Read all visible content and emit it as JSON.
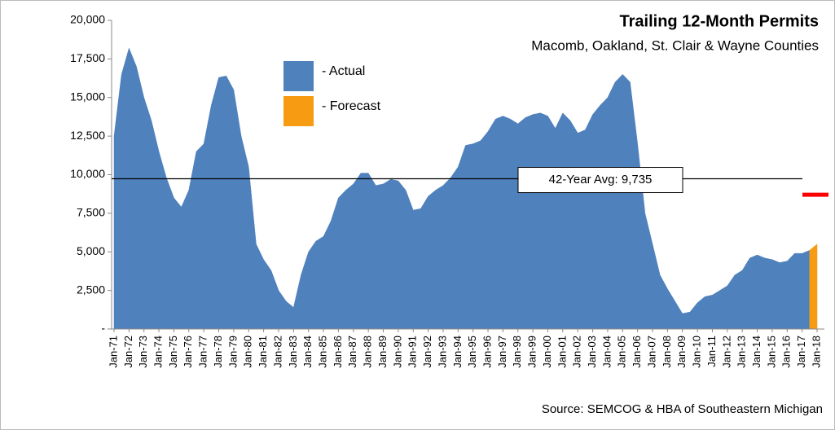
{
  "chart_data": {
    "type": "area",
    "title": "Trailing 12-Month Permits",
    "subtitle": "Macomb, Oakland, St. Clair & Wayne Counties",
    "source": "Source: SEMCOG & HBA of Southeastern Michigan",
    "categories": [
      "Jan-71",
      null,
      "Jan-72",
      null,
      "Jan-73",
      null,
      "Jan-74",
      null,
      "Jan-75",
      null,
      "Jan-76",
      null,
      "Jan-77",
      null,
      "Jan-78",
      null,
      "Jan-79",
      null,
      "Jan-80",
      null,
      "Jan-81",
      null,
      "Jan-82",
      null,
      "Jan-83",
      null,
      "Jan-84",
      null,
      "Jan-85",
      null,
      "Jan-86",
      null,
      "Jan-87",
      null,
      "Jan-88",
      null,
      "Jan-89",
      null,
      "Jan-90",
      null,
      "Jan-91",
      null,
      "Jan-92",
      null,
      "Jan-93",
      null,
      "Jan-94",
      null,
      "Jan-95",
      null,
      "Jan-96",
      null,
      "Jan-97",
      null,
      "Jan-98",
      null,
      "Jan-99",
      null,
      "Jan-00",
      null,
      "Jan-01",
      null,
      "Jan-02",
      null,
      "Jan-03",
      null,
      "Jan-04",
      null,
      "Jan-05",
      null,
      "Jan-06",
      null,
      "Jan-07",
      null,
      "Jan-08",
      null,
      "Jan-09",
      null,
      "Jan-10",
      null,
      "Jan-11",
      null,
      "Jan-12",
      null,
      "Jan-13",
      null,
      "Jan-14",
      null,
      "Jan-15",
      null,
      "Jan-16",
      null,
      "Jan-17",
      null,
      "Jan-18"
    ],
    "series": [
      {
        "name": "- Actual",
        "color": "#4f81bd",
        "values": [
          12500,
          16500,
          18200,
          17000,
          15000,
          13500,
          11500,
          9800,
          8500,
          7900,
          9000,
          11500,
          12000,
          14500,
          16300,
          16400,
          15500,
          12500,
          10500,
          5500,
          4500,
          3800,
          2500,
          1800,
          1400,
          3500,
          5000,
          5700,
          6000,
          7000,
          8500,
          9000,
          9400,
          10100,
          10100,
          9300,
          9400,
          9700,
          9600,
          9000,
          7700,
          7800,
          8600,
          9000,
          9300,
          9800,
          10500,
          11900,
          12000,
          12200,
          12800,
          13600,
          13800,
          13600,
          13300,
          13700,
          13900,
          14000,
          13800,
          13000,
          14000,
          13500,
          12700,
          12900,
          13900,
          14500,
          15000,
          16000,
          16500,
          16000,
          12000,
          7500,
          5500,
          3500,
          2600,
          1800,
          1000,
          1100,
          1700,
          2100,
          2200,
          2500,
          2800,
          3500,
          3800,
          4600,
          4800,
          4600,
          4500,
          4300,
          4400,
          4900,
          4900,
          5100,
          null
        ]
      },
      {
        "name": "- Forecast",
        "color": "#f79c12",
        "values": [
          null,
          null,
          null,
          null,
          null,
          null,
          null,
          null,
          null,
          null,
          null,
          null,
          null,
          null,
          null,
          null,
          null,
          null,
          null,
          null,
          null,
          null,
          null,
          null,
          null,
          null,
          null,
          null,
          null,
          null,
          null,
          null,
          null,
          null,
          null,
          null,
          null,
          null,
          null,
          null,
          null,
          null,
          null,
          null,
          null,
          null,
          null,
          null,
          null,
          null,
          null,
          null,
          null,
          null,
          null,
          null,
          null,
          null,
          null,
          null,
          null,
          null,
          null,
          null,
          null,
          null,
          null,
          null,
          null,
          null,
          null,
          null,
          null,
          null,
          null,
          null,
          null,
          null,
          null,
          null,
          null,
          null,
          null,
          null,
          null,
          null,
          null,
          null,
          null,
          null,
          null,
          null,
          null,
          5100,
          5500
        ]
      }
    ],
    "annotation": {
      "text": "42-Year Avg: 9,735",
      "value": 9735
    },
    "marker": {
      "value": 8700,
      "color": "#ff0000"
    },
    "ylim": [
      0,
      20000
    ],
    "yticks": [
      {
        "value": 0,
        "label": "-"
      },
      {
        "value": 2500,
        "label": "2,500"
      },
      {
        "value": 5000,
        "label": "5,000"
      },
      {
        "value": 7500,
        "label": "7,500"
      },
      {
        "value": 10000,
        "label": "10,000"
      },
      {
        "value": 12500,
        "label": "12,500"
      },
      {
        "value": 15000,
        "label": "15,000"
      },
      {
        "value": 17500,
        "label": "17,500"
      },
      {
        "value": 20000,
        "label": "20,000"
      }
    ]
  }
}
